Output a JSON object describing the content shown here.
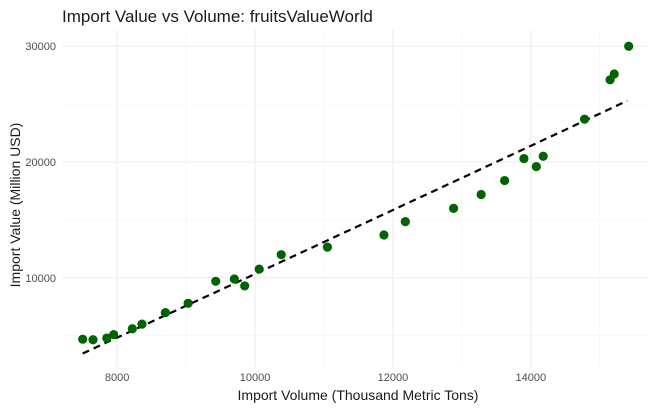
{
  "chart_data": {
    "type": "scatter",
    "title": "Import Value vs Volume: fruitsValueWorld",
    "xlabel": "Import Volume (Thousand Metric Tons)",
    "ylabel": "Import Value (Million USD)",
    "xlim": [
      7200,
      15700
    ],
    "ylim": [
      2300,
      31400
    ],
    "x_ticks": [
      8000,
      10000,
      12000,
      14000
    ],
    "y_ticks": [
      10000,
      20000,
      30000
    ],
    "x_tick_labels": [
      "8000",
      "10000",
      "12000",
      "14000"
    ],
    "y_tick_labels": [
      "10000",
      "20000",
      "30000"
    ],
    "grid": true,
    "point_color": "#006400",
    "trend_color": "#000000",
    "trend_style": "dashed",
    "trend_type": "quadratic fit",
    "points": [
      {
        "x": 7500,
        "y": 4700
      },
      {
        "x": 7650,
        "y": 4650
      },
      {
        "x": 7850,
        "y": 4800
      },
      {
        "x": 7950,
        "y": 5100
      },
      {
        "x": 8220,
        "y": 5600
      },
      {
        "x": 8360,
        "y": 6000
      },
      {
        "x": 8700,
        "y": 7000
      },
      {
        "x": 9030,
        "y": 7800
      },
      {
        "x": 9430,
        "y": 9700
      },
      {
        "x": 9700,
        "y": 9900
      },
      {
        "x": 9850,
        "y": 9300
      },
      {
        "x": 10060,
        "y": 10750
      },
      {
        "x": 10380,
        "y": 12000
      },
      {
        "x": 11050,
        "y": 12650
      },
      {
        "x": 11870,
        "y": 13700
      },
      {
        "x": 12180,
        "y": 14850
      },
      {
        "x": 12880,
        "y": 16000
      },
      {
        "x": 13280,
        "y": 17200
      },
      {
        "x": 13620,
        "y": 18400
      },
      {
        "x": 13900,
        "y": 20300
      },
      {
        "x": 14080,
        "y": 19600
      },
      {
        "x": 14180,
        "y": 20500
      },
      {
        "x": 14780,
        "y": 23700
      },
      {
        "x": 15150,
        "y": 27100
      },
      {
        "x": 15210,
        "y": 27600
      },
      {
        "x": 15420,
        "y": 30000
      }
    ],
    "trend": [
      {
        "x": 7500,
        "y": 3450
      },
      {
        "x": 10000,
        "y": 10400
      },
      {
        "x": 12000,
        "y": 15800
      },
      {
        "x": 15400,
        "y": 25300
      }
    ]
  }
}
